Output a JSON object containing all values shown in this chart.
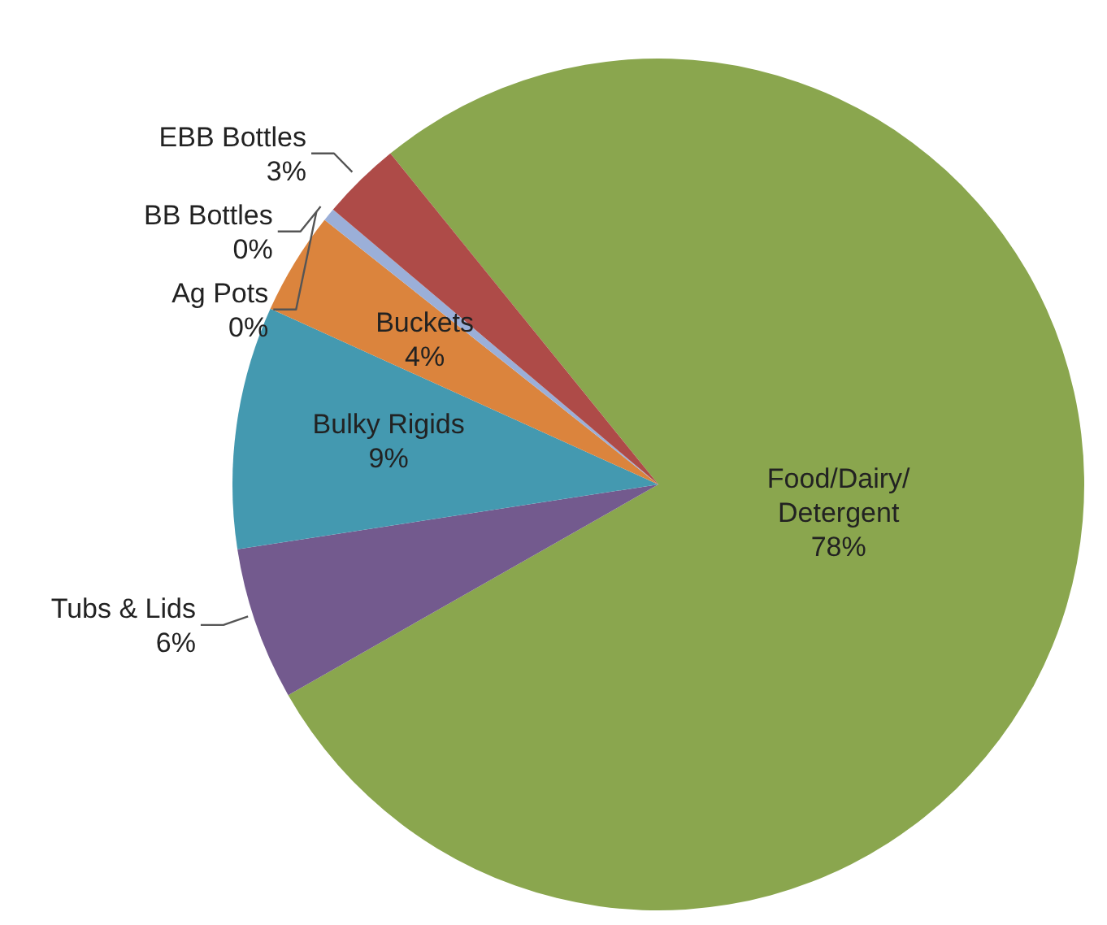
{
  "chart_data": {
    "type": "pie",
    "categories": [
      "Food/Dairy/Detergent",
      "Tubs & Lids",
      "Bulky Rigids",
      "Buckets",
      "Ag Pots",
      "BB Bottles",
      "EBB Bottles"
    ],
    "values": [
      77.6,
      5.8,
      9.2,
      3.9,
      0,
      0.5,
      3.0
    ],
    "value_labels": [
      "78%",
      "6%",
      "9%",
      "4%",
      "0%",
      "0%",
      "3%"
    ],
    "colors": [
      "#8aa64e",
      "#735a8e",
      "#4499b0",
      "#db843d",
      "#4f81bd",
      "#9bafd8",
      "#ae4b48"
    ],
    "legend": false
  }
}
